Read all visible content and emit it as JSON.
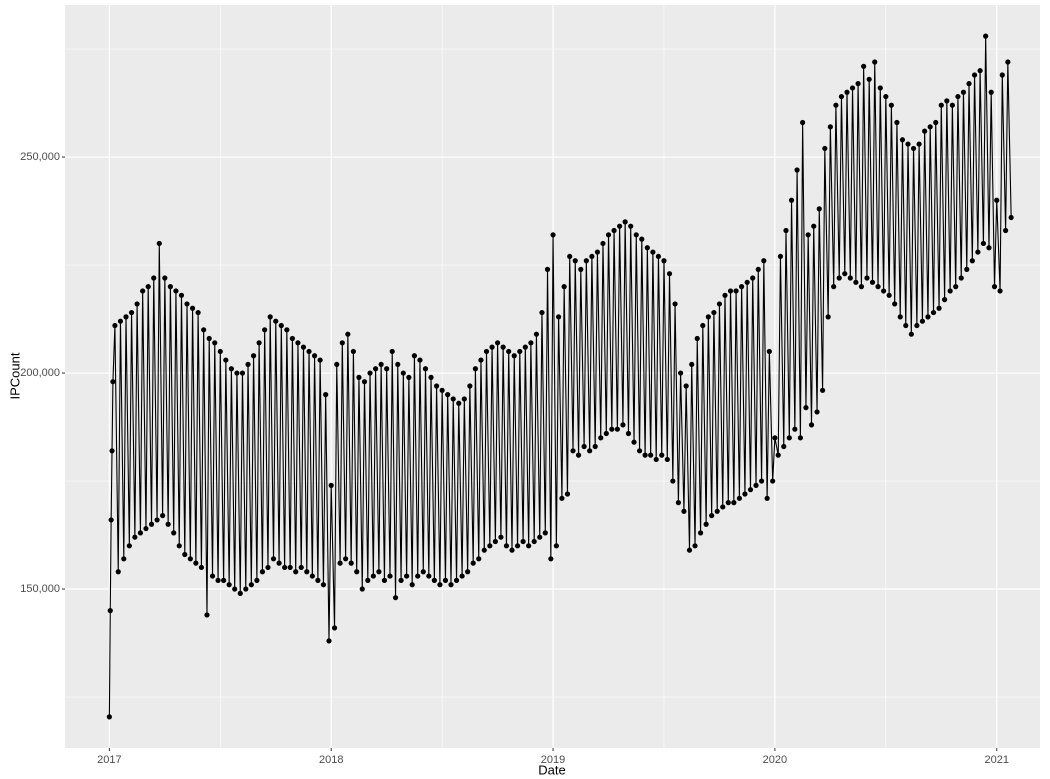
{
  "chart_data": {
    "type": "line",
    "x_label": "Date",
    "y_label": "IPCount",
    "color": "#000000",
    "grid": true,
    "xlim": [
      2016.8,
      2021.195
    ],
    "xticks": [
      2017,
      2018,
      2019,
      2020,
      2021
    ],
    "ylim": [
      113200,
      285200
    ],
    "yticks": [
      {
        "value": 150000,
        "label": "150,000"
      },
      {
        "value": 200000,
        "label": "200,000"
      },
      {
        "value": 250000,
        "label": "250,000"
      }
    ],
    "x": [
      2017,
      2017.004,
      2017.008,
      2017.012,
      2017.016,
      2017.025,
      2017.04,
      2017.05,
      2017.065,
      2017.075,
      2017.09,
      2017.1,
      2017.115,
      2017.125,
      2017.14,
      2017.15,
      2017.165,
      2017.175,
      2017.19,
      2017.2,
      2017.215,
      2017.225,
      2017.24,
      2017.25,
      2017.265,
      2017.275,
      2017.29,
      2017.3,
      2017.315,
      2017.325,
      2017.34,
      2017.35,
      2017.365,
      2017.375,
      2017.39,
      2017.4,
      2017.415,
      2017.425,
      2017.44,
      2017.45,
      2017.465,
      2017.475,
      2017.49,
      2017.5,
      2017.515,
      2017.525,
      2017.54,
      2017.55,
      2017.565,
      2017.575,
      2017.59,
      2017.6,
      2017.615,
      2017.625,
      2017.64,
      2017.65,
      2017.665,
      2017.675,
      2017.69,
      2017.7,
      2017.715,
      2017.725,
      2017.74,
      2017.75,
      2017.765,
      2017.775,
      2017.79,
      2017.8,
      2017.815,
      2017.825,
      2017.84,
      2017.85,
      2017.865,
      2017.875,
      2017.89,
      2017.9,
      2017.915,
      2017.925,
      2017.94,
      2017.95,
      2017.965,
      2017.975,
      2017.99,
      2018,
      2018.015,
      2018.025,
      2018.04,
      2018.05,
      2018.065,
      2018.075,
      2018.09,
      2018.1,
      2018.115,
      2018.125,
      2018.14,
      2018.15,
      2018.165,
      2018.175,
      2018.19,
      2018.2,
      2018.215,
      2018.225,
      2018.24,
      2018.25,
      2018.265,
      2018.275,
      2018.29,
      2018.3,
      2018.315,
      2018.325,
      2018.34,
      2018.35,
      2018.365,
      2018.375,
      2018.39,
      2018.4,
      2018.415,
      2018.425,
      2018.44,
      2018.45,
      2018.465,
      2018.475,
      2018.49,
      2018.5,
      2018.515,
      2018.525,
      2018.54,
      2018.55,
      2018.565,
      2018.575,
      2018.59,
      2018.6,
      2018.615,
      2018.625,
      2018.64,
      2018.65,
      2018.665,
      2018.675,
      2018.69,
      2018.7,
      2018.715,
      2018.725,
      2018.74,
      2018.75,
      2018.765,
      2018.775,
      2018.79,
      2018.8,
      2018.815,
      2018.825,
      2018.84,
      2018.85,
      2018.865,
      2018.875,
      2018.89,
      2018.9,
      2018.915,
      2018.925,
      2018.94,
      2018.95,
      2018.965,
      2018.975,
      2018.99,
      2019,
      2019.015,
      2019.025,
      2019.04,
      2019.05,
      2019.065,
      2019.075,
      2019.09,
      2019.1,
      2019.115,
      2019.125,
      2019.14,
      2019.15,
      2019.165,
      2019.175,
      2019.19,
      2019.2,
      2019.215,
      2019.225,
      2019.24,
      2019.25,
      2019.265,
      2019.275,
      2019.29,
      2019.3,
      2019.315,
      2019.325,
      2019.34,
      2019.35,
      2019.365,
      2019.375,
      2019.39,
      2019.4,
      2019.415,
      2019.425,
      2019.44,
      2019.45,
      2019.465,
      2019.475,
      2019.49,
      2019.5,
      2019.515,
      2019.525,
      2019.54,
      2019.55,
      2019.565,
      2019.575,
      2019.59,
      2019.6,
      2019.615,
      2019.625,
      2019.64,
      2019.65,
      2019.665,
      2019.675,
      2019.69,
      2019.7,
      2019.715,
      2019.725,
      2019.74,
      2019.75,
      2019.765,
      2019.775,
      2019.79,
      2019.8,
      2019.815,
      2019.825,
      2019.84,
      2019.85,
      2019.865,
      2019.875,
      2019.89,
      2019.9,
      2019.915,
      2019.925,
      2019.94,
      2019.95,
      2019.965,
      2019.975,
      2019.99,
      2020,
      2020.015,
      2020.025,
      2020.04,
      2020.05,
      2020.065,
      2020.075,
      2020.09,
      2020.1,
      2020.115,
      2020.125,
      2020.14,
      2020.15,
      2020.165,
      2020.175,
      2020.19,
      2020.2,
      2020.215,
      2020.225,
      2020.24,
      2020.25,
      2020.265,
      2020.275,
      2020.29,
      2020.3,
      2020.315,
      2020.325,
      2020.34,
      2020.35,
      2020.365,
      2020.375,
      2020.39,
      2020.4,
      2020.415,
      2020.425,
      2020.44,
      2020.45,
      2020.465,
      2020.475,
      2020.49,
      2020.5,
      2020.515,
      2020.525,
      2020.54,
      2020.55,
      2020.565,
      2020.575,
      2020.59,
      2020.6,
      2020.615,
      2020.625,
      2020.64,
      2020.65,
      2020.665,
      2020.675,
      2020.69,
      2020.7,
      2020.715,
      2020.725,
      2020.74,
      2020.75,
      2020.765,
      2020.775,
      2020.79,
      2020.8,
      2020.815,
      2020.825,
      2020.84,
      2020.85,
      2020.865,
      2020.875,
      2020.89,
      2020.9,
      2020.915,
      2020.925,
      2020.94,
      2020.95,
      2020.965,
      2020.975,
      2020.99,
      2021,
      2021.015,
      2021.025,
      2021.04,
      2021.05,
      2021.065
    ],
    "values": [
      120400,
      145000,
      166000,
      182000,
      198000,
      211000,
      154000,
      212000,
      157000,
      213000,
      160000,
      214000,
      162000,
      216000,
      163000,
      219000,
      164000,
      220000,
      165000,
      222000,
      166000,
      230000,
      167000,
      222000,
      165000,
      220000,
      163000,
      219000,
      160000,
      218000,
      158000,
      216000,
      157000,
      215000,
      156000,
      214000,
      155000,
      210000,
      144000,
      208000,
      153000,
      207000,
      152000,
      205000,
      152000,
      203000,
      151000,
      201000,
      150000,
      200000,
      149000,
      200000,
      150000,
      202000,
      151000,
      204000,
      152000,
      207000,
      154000,
      210000,
      155000,
      213000,
      157000,
      212000,
      156000,
      211000,
      155000,
      210000,
      155000,
      208000,
      154000,
      207000,
      155000,
      206000,
      154000,
      205000,
      153000,
      204000,
      152000,
      203000,
      151000,
      195000,
      138000,
      174000,
      141000,
      202000,
      156000,
      207000,
      157000,
      209000,
      156000,
      205000,
      154000,
      199000,
      150000,
      198000,
      152000,
      200000,
      153000,
      201000,
      154000,
      202000,
      152000,
      201000,
      153000,
      205000,
      148000,
      202000,
      152000,
      200000,
      153000,
      199000,
      151000,
      204000,
      153000,
      203000,
      154000,
      201000,
      153000,
      199000,
      152000,
      197000,
      151000,
      196000,
      152000,
      195000,
      151000,
      194000,
      152000,
      193000,
      153000,
      194000,
      154000,
      197000,
      156000,
      201000,
      157000,
      203000,
      159000,
      205000,
      160000,
      206000,
      161000,
      207000,
      162000,
      206000,
      160000,
      205000,
      159000,
      204000,
      160000,
      205000,
      161000,
      206000,
      160000,
      207000,
      161000,
      209000,
      162000,
      214000,
      163000,
      224000,
      157000,
      232000,
      160000,
      213000,
      171000,
      220000,
      172000,
      227000,
      182000,
      226000,
      181000,
      224000,
      183000,
      226000,
      182000,
      227000,
      183000,
      228000,
      185000,
      230000,
      186000,
      232000,
      187000,
      233000,
      187000,
      234000,
      188000,
      235000,
      186000,
      234000,
      184000,
      232000,
      182000,
      231000,
      181000,
      229000,
      181000,
      228000,
      180000,
      227000,
      181000,
      226000,
      180000,
      223000,
      175000,
      216000,
      170000,
      200000,
      168000,
      197000,
      159000,
      202000,
      160000,
      208000,
      163000,
      211000,
      165000,
      213000,
      167000,
      214000,
      168000,
      216000,
      169000,
      218000,
      170000,
      219000,
      170000,
      219000,
      171000,
      220000,
      172000,
      221000,
      173000,
      222000,
      174000,
      224000,
      175000,
      226000,
      171000,
      205000,
      175000,
      185000,
      181000,
      227000,
      183000,
      233000,
      185000,
      240000,
      187000,
      247000,
      185000,
      258000,
      192000,
      232000,
      188000,
      234000,
      191000,
      238000,
      196000,
      252000,
      213000,
      257000,
      220000,
      262000,
      222000,
      264000,
      223000,
      265000,
      222000,
      266000,
      221000,
      267000,
      220000,
      271000,
      222000,
      268000,
      221000,
      272000,
      220000,
      266000,
      219000,
      264000,
      218000,
      262000,
      216000,
      258000,
      213000,
      254000,
      211000,
      253000,
      209000,
      252000,
      211000,
      253000,
      212000,
      256000,
      213000,
      257000,
      214000,
      258000,
      215000,
      262000,
      217000,
      263000,
      219000,
      262000,
      220000,
      264000,
      222000,
      265000,
      224000,
      267000,
      226000,
      269000,
      228000,
      270000,
      230000,
      278000,
      229000,
      265000,
      220000,
      240000,
      219000,
      269000,
      233000,
      272000,
      236000
    ]
  }
}
